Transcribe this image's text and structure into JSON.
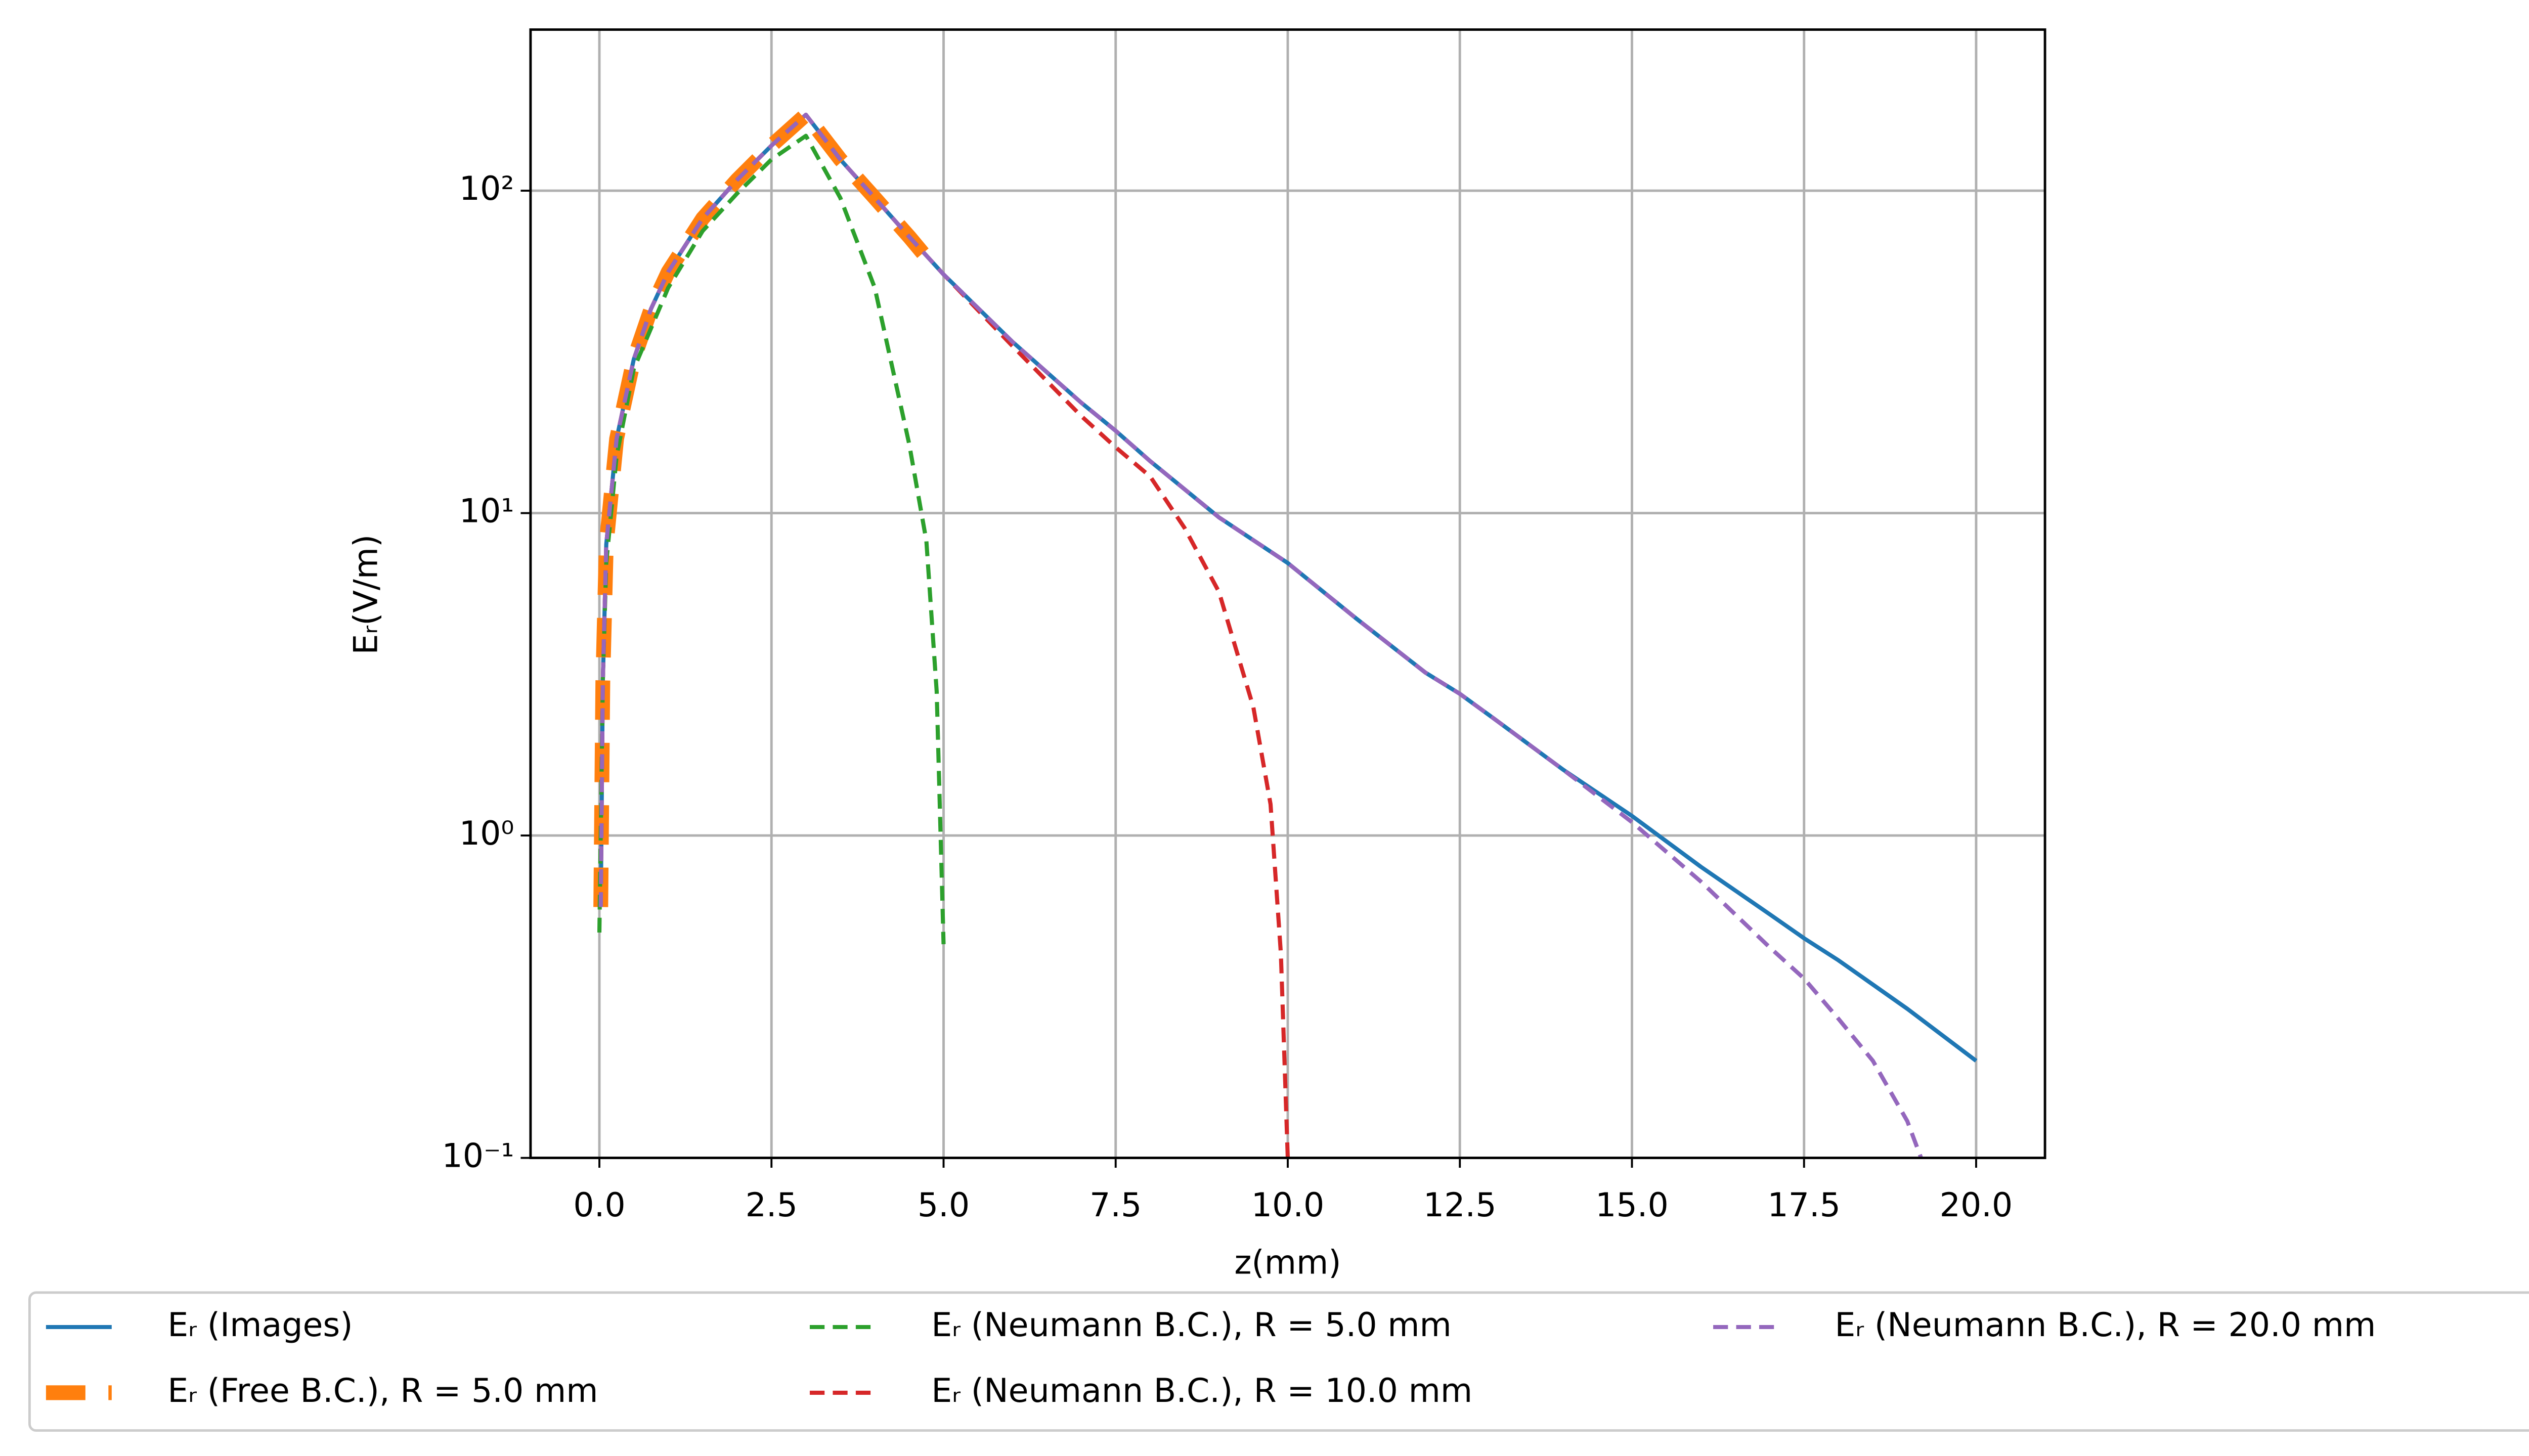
{
  "chart_data": {
    "type": "line",
    "x_label": "z(mm)",
    "y_label": "Eᵣ(V/m)",
    "log_y": true,
    "grid": true,
    "legend_loc": "lower center",
    "xlim": [
      -1,
      21
    ],
    "ylim": [
      0.1,
      316
    ],
    "xticks": [
      {
        "value": 0,
        "label": "0.0"
      },
      2.5,
      {
        "value": 5,
        "label": "5.0"
      },
      7.5,
      {
        "value": 10,
        "label": "10.0"
      },
      12.5,
      {
        "value": 15,
        "label": "15.0"
      },
      17.5,
      {
        "value": 20,
        "label": "20.0"
      }
    ],
    "yticks": [
      {
        "value": 0.1,
        "label": "10⁻¹"
      },
      {
        "value": 1,
        "label": "10⁰"
      },
      {
        "value": 10,
        "label": "10¹"
      },
      {
        "value": 100,
        "label": "10²"
      }
    ],
    "series": [
      {
        "name": "Eᵣ (Images)",
        "color": "#1f77b4",
        "linestyle": "solid",
        "linewidth": 2.5,
        "x": [
          0.02,
          0.05,
          0.1,
          0.25,
          0.5,
          0.75,
          1,
          1.5,
          2,
          2.5,
          3,
          3.5,
          4,
          4.5,
          5,
          6,
          7,
          7.5,
          8,
          9,
          10,
          11,
          12,
          12.5,
          13,
          14,
          15,
          16,
          17,
          17.5,
          18,
          19,
          20
        ],
        "values": [
          0.6,
          3,
          8,
          17,
          30,
          43,
          56,
          82,
          108,
          138,
          172,
          125,
          95,
          72,
          55,
          34,
          22,
          18,
          14.5,
          9.7,
          7,
          4.7,
          3.2,
          2.75,
          2.3,
          1.6,
          1.15,
          0.8,
          0.57,
          0.48,
          0.41,
          0.29,
          0.2
        ]
      },
      {
        "name": "Eᵣ (Free B.C.), R = 5.0 mm",
        "color": "#ff7f0e",
        "linestyle": "dashed",
        "linewidth": 9,
        "x": [
          0.02,
          0.05,
          0.1,
          0.25,
          0.5,
          0.75,
          1,
          1.5,
          2,
          2.5,
          3,
          3.5,
          4,
          4.5,
          4.7
        ],
        "values": [
          0.6,
          3,
          8,
          17,
          30,
          43,
          56,
          82,
          108,
          138,
          172,
          125,
          95,
          72,
          64
        ]
      },
      {
        "name": "Eᵣ (Neumann B.C.), R = 5.0 mm",
        "color": "#2ca02c",
        "linestyle": "dashed",
        "linewidth": 2.5,
        "x": [
          0,
          0.05,
          0.1,
          0.25,
          0.5,
          1,
          1.5,
          2,
          2.5,
          3,
          3.5,
          4,
          4.5,
          4.75,
          4.9,
          5
        ],
        "values": [
          0.5,
          3,
          7,
          15,
          28,
          50,
          75,
          98,
          125,
          148,
          95,
          50,
          16.4,
          8.2,
          2.8,
          0.46
        ]
      },
      {
        "name": "Eᵣ (Neumann B.C.), R = 10.0 mm",
        "color": "#d62728",
        "linestyle": "dashed",
        "linewidth": 2.5,
        "x": [
          0.02,
          0.05,
          0.1,
          0.25,
          0.5,
          0.75,
          1,
          1.5,
          2,
          2.5,
          3,
          3.5,
          4,
          4.5,
          5,
          6,
          7,
          7.5,
          8,
          8.5,
          9,
          9.5,
          9.75,
          9.9,
          10
        ],
        "values": [
          0.6,
          3,
          8,
          17,
          30,
          43,
          56,
          82,
          108,
          138,
          172,
          125,
          95,
          72,
          55,
          33,
          20,
          16,
          13,
          9,
          5.7,
          2.5,
          1.25,
          0.43,
          0.1
        ]
      },
      {
        "name": "Eᵣ (Neumann B.C.), R = 20.0 mm",
        "color": "#9467bd",
        "linestyle": "dashed",
        "linewidth": 2.5,
        "x": [
          0.02,
          0.05,
          0.1,
          0.25,
          0.5,
          0.75,
          1,
          1.5,
          2,
          2.5,
          3,
          3.5,
          4,
          4.5,
          5,
          6,
          7,
          7.5,
          8,
          9,
          10,
          11,
          12,
          12.5,
          13,
          14,
          15,
          16,
          17,
          17.5,
          18,
          18.5,
          19,
          19.2
        ],
        "values": [
          0.6,
          3,
          8,
          17,
          30,
          43,
          56,
          82,
          108,
          138,
          172,
          125,
          95,
          72,
          55,
          34,
          22,
          18,
          14.5,
          9.7,
          7,
          4.7,
          3.2,
          2.75,
          2.3,
          1.6,
          1.1,
          0.72,
          0.45,
          0.36,
          0.27,
          0.2,
          0.13,
          0.1
        ]
      }
    ]
  }
}
